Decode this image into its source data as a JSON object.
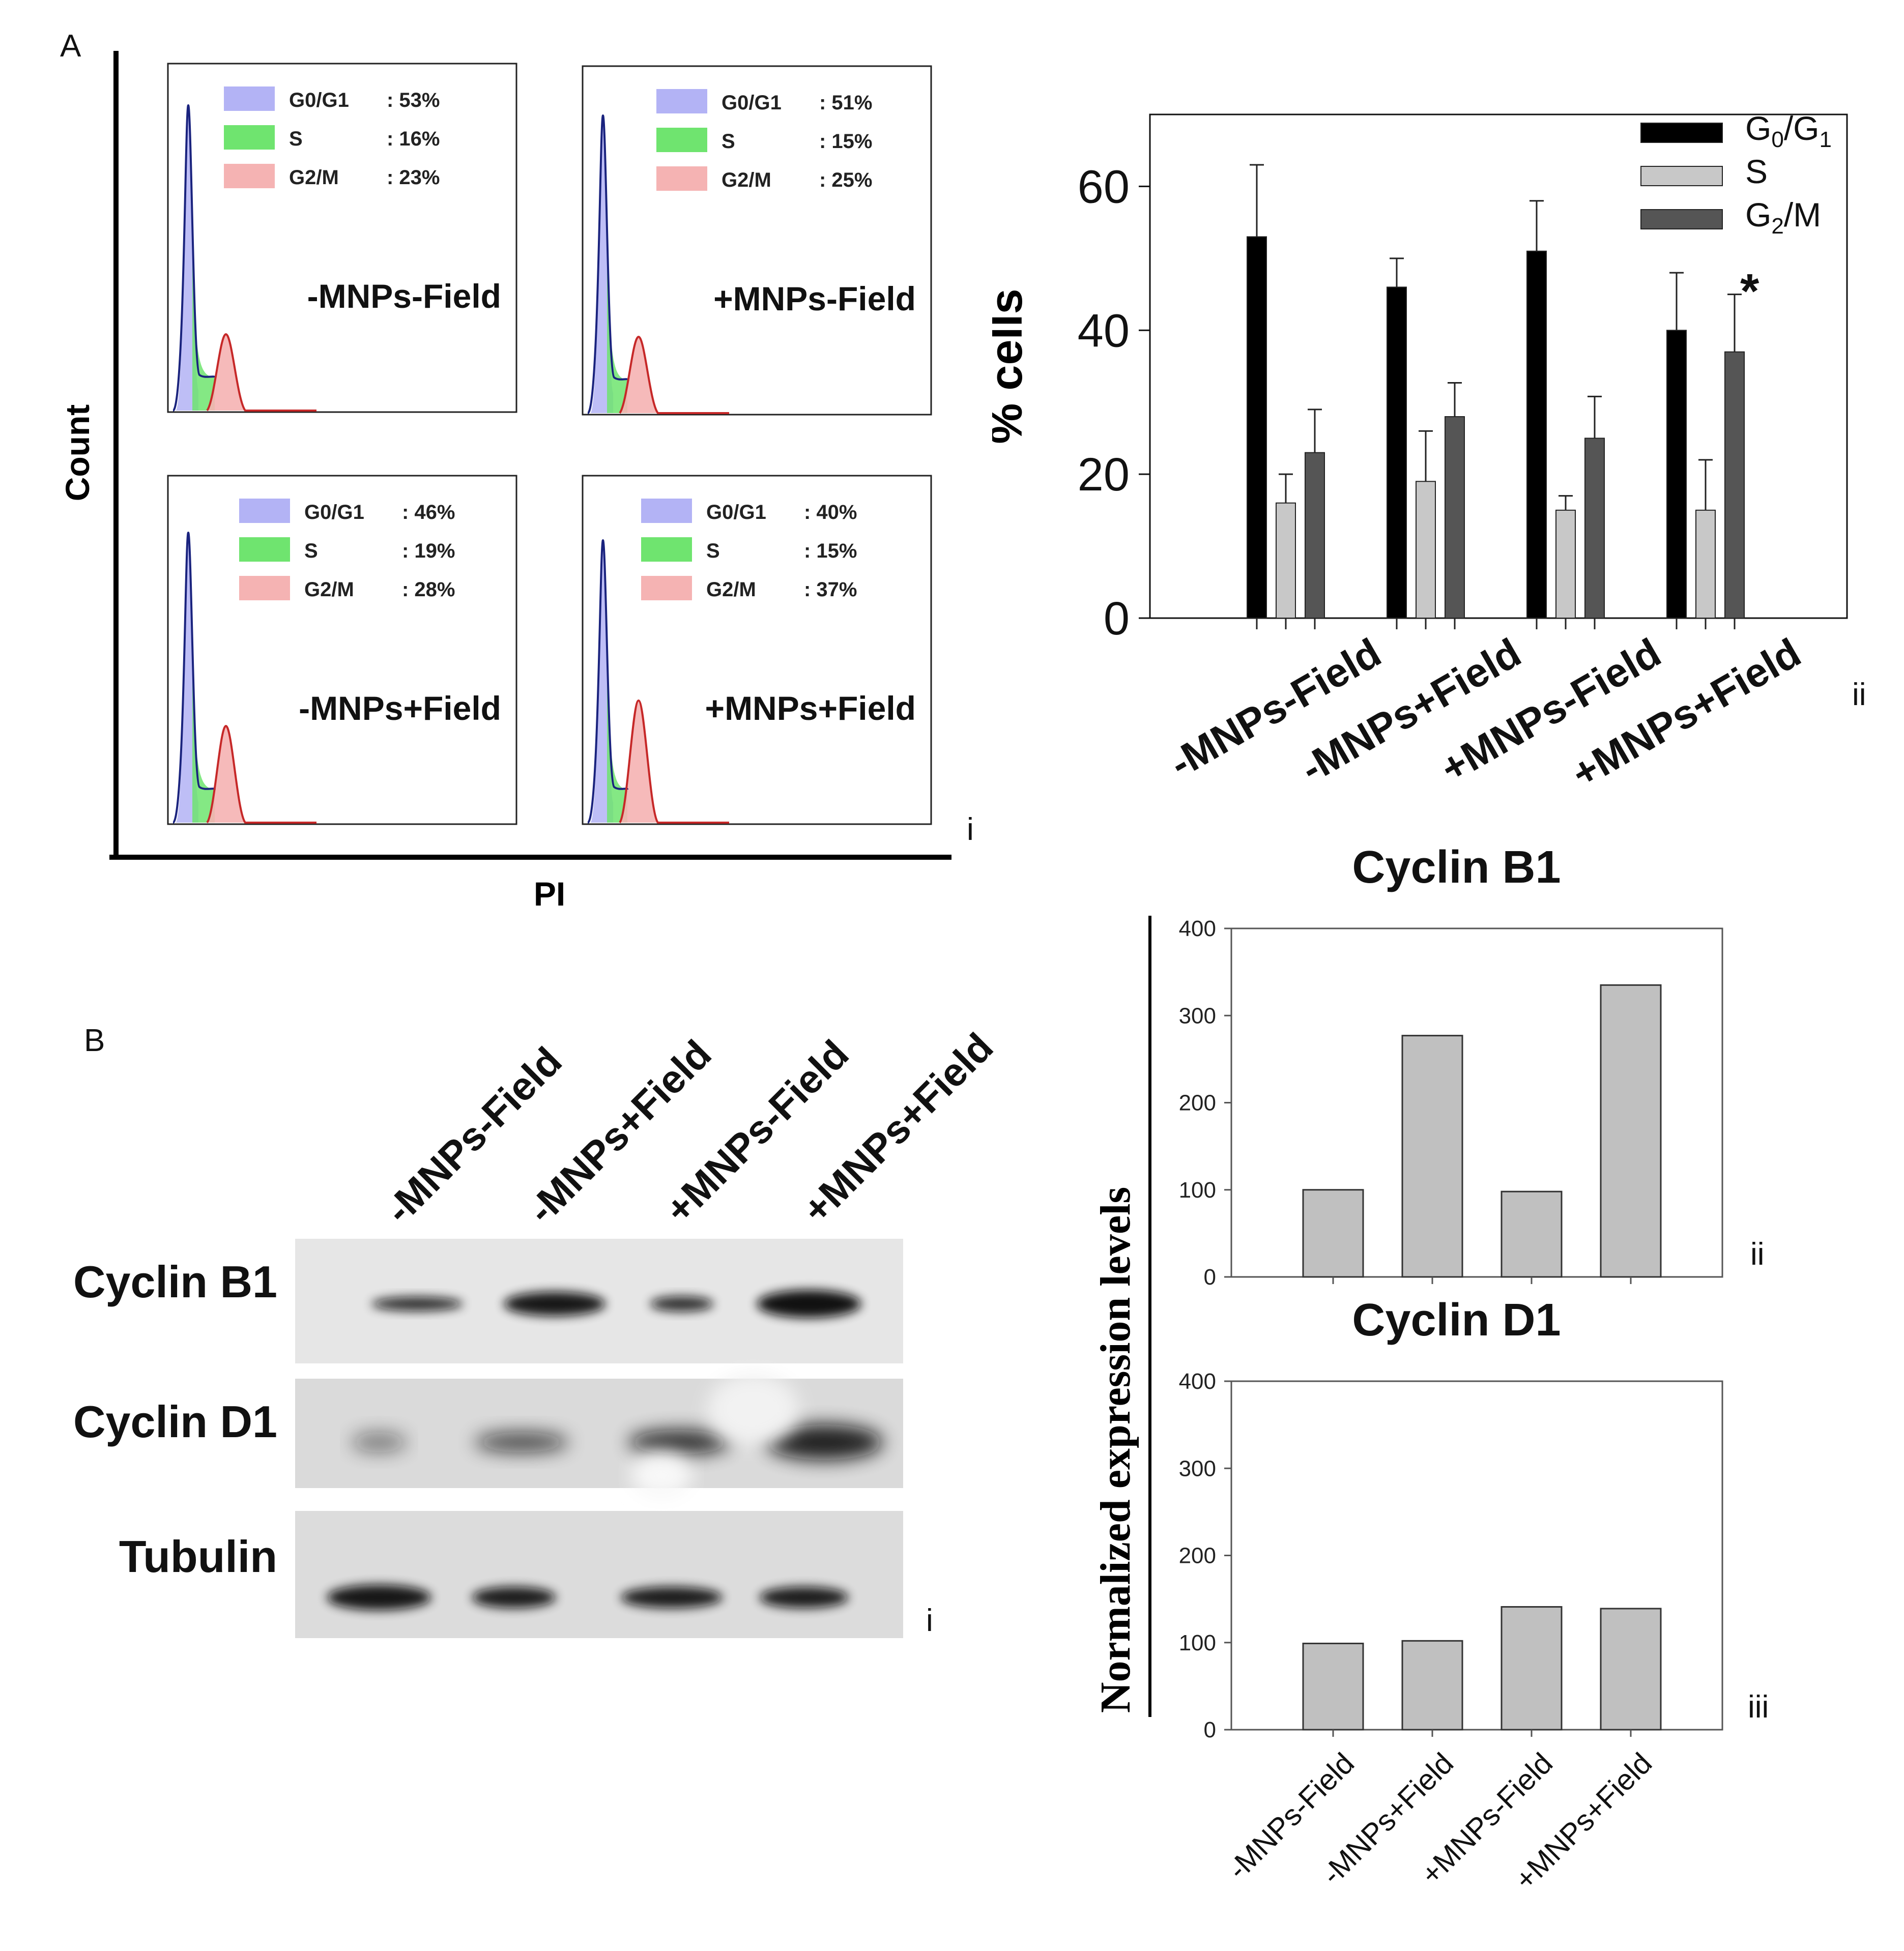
{
  "panels": {
    "a": "A",
    "b": "B"
  },
  "sublabels": {
    "a_i": "i",
    "a_ii": "ii",
    "b_i": "i",
    "b_ii": "ii",
    "b_iii": "iii"
  },
  "flow": {
    "ylabel": "Count",
    "xlabel": "PI",
    "legend_names": [
      "G0/G1",
      "S",
      "G2/M"
    ],
    "colors": {
      "g0g1": "#b3b3f5",
      "s": "#6fe46f",
      "g2m": "#f5b3b3",
      "outline": "#1a237e",
      "peak": "#c62828"
    },
    "plots": [
      {
        "title": "-MNPs-Field",
        "values": [
          ": 53%",
          ": 16%",
          ": 23%"
        ]
      },
      {
        "title": "+MNPs-Field",
        "values": [
          ": 51%",
          ": 15%",
          ": 25%"
        ]
      },
      {
        "title": "-MNPs+Field",
        "values": [
          ": 46%",
          ": 19%",
          ": 28%"
        ]
      },
      {
        "title": "+MNPs+Field",
        "values": [
          ": 40%",
          ": 15%",
          ": 37%"
        ]
      }
    ]
  },
  "western": {
    "lanes": [
      "-MNPs-Field",
      "-MNPs+Field",
      "+MNPs-Field",
      "+MNPs+Field"
    ],
    "rows": [
      "Cyclin B1",
      "Cyclin D1",
      "Tubulin"
    ]
  },
  "chart_data": [
    {
      "type": "bar",
      "ylabel": "% cells",
      "ylim": [
        0,
        70
      ],
      "yticks": [
        0,
        20,
        40,
        60
      ],
      "categories": [
        "-MNPs-Field",
        "-MNPs+Field",
        "+MNPs-Field",
        "+MNPs+Field"
      ],
      "series": [
        {
          "name": "G0/G1",
          "values": [
            53,
            46,
            51,
            40
          ],
          "errors": [
            10,
            4,
            7,
            8
          ],
          "color": "#000000"
        },
        {
          "name": "S",
          "values": [
            16,
            19,
            15,
            15
          ],
          "errors": [
            4,
            7,
            2,
            7
          ],
          "color": "#c8c8c8"
        },
        {
          "name": "G2/M",
          "values": [
            23,
            28,
            25,
            37
          ],
          "errors": [
            6,
            4.7,
            5.8,
            8
          ],
          "color": "#555555"
        }
      ],
      "legend_parts": [
        [
          "G",
          "0",
          "/G",
          "1"
        ],
        [
          "S"
        ],
        [
          "G",
          "2",
          "/M"
        ]
      ],
      "annotation": "*",
      "legend_position": "top-right"
    },
    {
      "type": "bar",
      "title": "Cyclin B1",
      "ylim": [
        0,
        400
      ],
      "yticks": [
        0,
        100,
        200,
        300,
        400
      ],
      "categories": [
        "-MNPs-Field",
        "-MNPs+Field",
        "+MNPs-Field",
        "+MNPs+Field"
      ],
      "values": [
        100,
        277,
        98,
        335
      ],
      "color": "#c0c0c0"
    },
    {
      "type": "bar",
      "title": "Cyclin D1",
      "ylim": [
        0,
        400
      ],
      "yticks": [
        0,
        100,
        200,
        300,
        400
      ],
      "categories": [
        "-MNPs-Field",
        "-MNPs+Field",
        "+MNPs-Field",
        "+MNPs+Field"
      ],
      "values": [
        99,
        102,
        141,
        139
      ],
      "color": "#c0c0c0"
    }
  ],
  "expression_ylabel": "Normalized  expression  levels"
}
